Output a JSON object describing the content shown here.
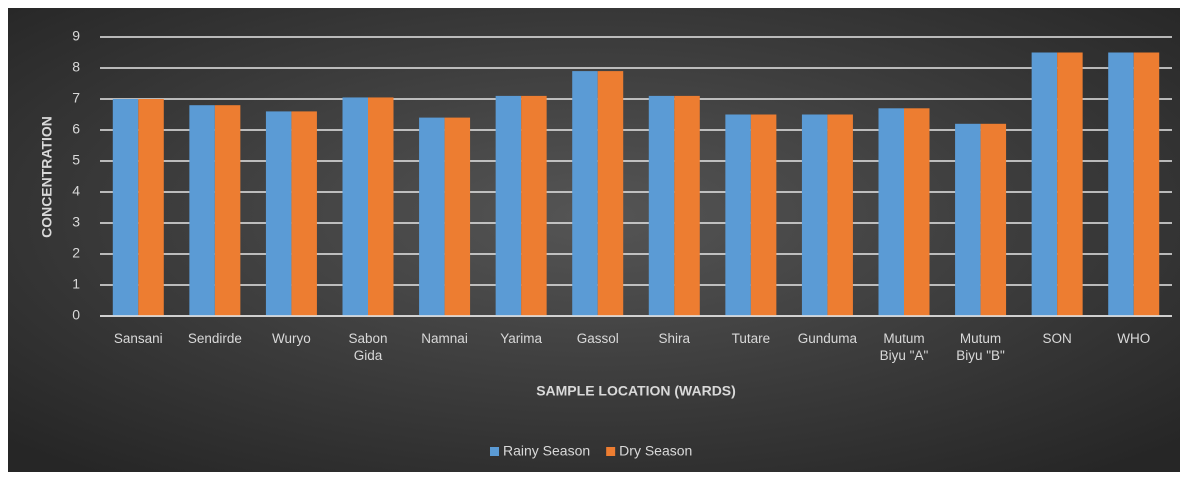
{
  "chart_data": {
    "type": "bar",
    "x_label": "SAMPLE LOCATION (WARDS)",
    "y_label": "CONCENTRATION",
    "categories": [
      "Sansani",
      "Sendirde",
      "Wuryo",
      "Sabon Gida",
      "Namnai",
      "Yarima",
      "Gassol",
      "Shira",
      "Tutare",
      "Gunduma",
      "Mutum Biyu \"A\"",
      "Mutum Biyu \"B\"",
      "SON",
      "WHO"
    ],
    "series": [
      {
        "name": "Rainy Season",
        "color": "#5b9bd5",
        "values": [
          7.0,
          6.8,
          6.6,
          7.05,
          6.4,
          7.1,
          7.9,
          7.1,
          6.5,
          6.5,
          6.7,
          6.2,
          8.5,
          8.5
        ]
      },
      {
        "name": "Dry Season",
        "color": "#ed7d31",
        "values": [
          7.0,
          6.8,
          6.6,
          7.05,
          6.4,
          7.1,
          7.9,
          7.1,
          6.5,
          6.5,
          6.7,
          6.2,
          8.5,
          8.5
        ]
      }
    ],
    "ylim": [
      0,
      9
    ],
    "yticks": [
      0,
      1,
      2,
      3,
      4,
      5,
      6,
      7,
      8,
      9
    ],
    "grid": true,
    "legend": "bottom"
  }
}
